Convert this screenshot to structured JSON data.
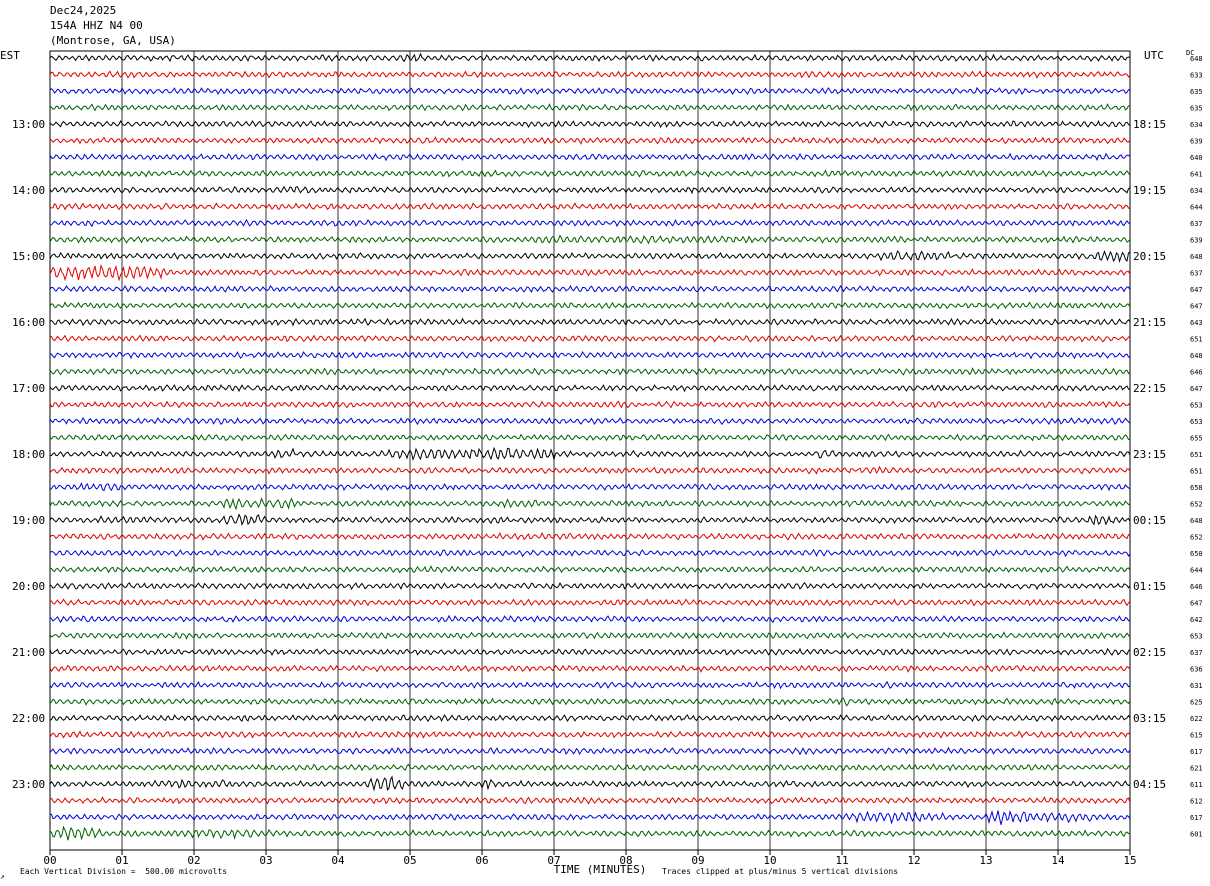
{
  "header": {
    "date": "Dec24,2025",
    "station": "154A HHZ N4 00",
    "location": "(Montrose, GA, USA)"
  },
  "tz_left": "EST",
  "tz_right": "UTC",
  "dc_label": "DC",
  "footer": {
    "scale": "Each Vertical Division =  500.00 microvolts",
    "clip": "Traces clipped at plus/minus 5 vertical divisions",
    "corner_mark": "↗"
  },
  "colors": {
    "trace_cycle": [
      "#000000",
      "#e00000",
      "#0000e0",
      "#006000"
    ],
    "grid": "#000000"
  },
  "chart_data": {
    "type": "line",
    "title": "",
    "xlabel": "TIME (MINUTES)",
    "ylabel": "",
    "xlim": [
      0,
      15
    ],
    "x_ticks": [
      "00",
      "01",
      "02",
      "03",
      "04",
      "05",
      "06",
      "07",
      "08",
      "09",
      "10",
      "11",
      "12",
      "13",
      "14",
      "15"
    ],
    "grid": true,
    "trace_interval_minutes": 15,
    "left_time_labels": [
      "13:00",
      "14:00",
      "15:00",
      "16:00",
      "17:00",
      "18:00",
      "19:00",
      "20:00",
      "21:00",
      "22:00",
      "23:00"
    ],
    "right_time_labels": [
      "18:15",
      "19:15",
      "20:15",
      "21:15",
      "22:15",
      "23:15",
      "00:15",
      "01:15",
      "02:15",
      "03:15",
      "04:15"
    ],
    "dc_values": [
      648,
      633,
      635,
      635,
      634,
      639,
      640,
      641,
      634,
      644,
      637,
      639,
      648,
      637,
      647,
      647,
      643,
      651,
      648,
      646,
      647,
      653,
      653,
      655,
      651,
      651,
      658,
      652,
      648,
      652,
      650,
      644,
      646,
      647,
      642,
      653,
      637,
      636,
      631,
      625,
      622,
      615,
      617,
      621,
      611,
      612,
      617,
      601
    ],
    "bursts": [
      {
        "trace": 0,
        "start_min": 4.9,
        "end_min": 5.2,
        "amp": 1.6
      },
      {
        "trace": 8,
        "start_min": 3.2,
        "end_min": 3.6,
        "amp": 1.5
      },
      {
        "trace": 11,
        "start_min": 6.5,
        "end_min": 9.5,
        "amp": 1.4
      },
      {
        "trace": 12,
        "start_min": 11.5,
        "end_min": 12.5,
        "amp": 1.7
      },
      {
        "trace": 12,
        "start_min": 14.5,
        "end_min": 15.0,
        "amp": 2.8
      },
      {
        "trace": 13,
        "start_min": 0.0,
        "end_min": 1.6,
        "amp": 2.8
      },
      {
        "trace": 24,
        "start_min": 3.1,
        "end_min": 3.4,
        "amp": 2.2
      },
      {
        "trace": 24,
        "start_min": 4.7,
        "end_min": 7.0,
        "amp": 2.3
      },
      {
        "trace": 24,
        "start_min": 10.6,
        "end_min": 10.9,
        "amp": 1.8
      },
      {
        "trace": 25,
        "start_min": 11.3,
        "end_min": 11.7,
        "amp": 1.6
      },
      {
        "trace": 26,
        "start_min": 0.4,
        "end_min": 1.2,
        "amp": 1.5
      },
      {
        "trace": 27,
        "start_min": 2.4,
        "end_min": 3.4,
        "amp": 2.0
      },
      {
        "trace": 27,
        "start_min": 6.3,
        "end_min": 6.8,
        "amp": 1.5
      },
      {
        "trace": 28,
        "start_min": 0.6,
        "end_min": 1.4,
        "amp": 1.4
      },
      {
        "trace": 28,
        "start_min": 2.4,
        "end_min": 3.0,
        "amp": 2.6
      },
      {
        "trace": 28,
        "start_min": 14.4,
        "end_min": 14.8,
        "amp": 2.0
      },
      {
        "trace": 29,
        "start_min": 6.8,
        "end_min": 7.4,
        "amp": 1.3
      },
      {
        "trace": 36,
        "start_min": 8.1,
        "end_min": 8.4,
        "amp": 1.3
      },
      {
        "trace": 39,
        "start_min": 11.0,
        "end_min": 11.1,
        "amp": 2.0
      },
      {
        "trace": 44,
        "start_min": 1.4,
        "end_min": 2.6,
        "amp": 1.5
      },
      {
        "trace": 44,
        "start_min": 4.4,
        "end_min": 4.9,
        "amp": 3.2
      },
      {
        "trace": 44,
        "start_min": 6.0,
        "end_min": 6.2,
        "amp": 1.6
      },
      {
        "trace": 46,
        "start_min": 11.2,
        "end_min": 12.4,
        "amp": 2.2
      },
      {
        "trace": 46,
        "start_min": 13.0,
        "end_min": 13.6,
        "amp": 3.0
      },
      {
        "trace": 46,
        "start_min": 13.6,
        "end_min": 14.6,
        "amp": 1.7
      },
      {
        "trace": 47,
        "start_min": 0.0,
        "end_min": 0.7,
        "amp": 2.6
      },
      {
        "trace": 47,
        "start_min": 1.6,
        "end_min": 3.2,
        "amp": 1.5
      }
    ]
  }
}
